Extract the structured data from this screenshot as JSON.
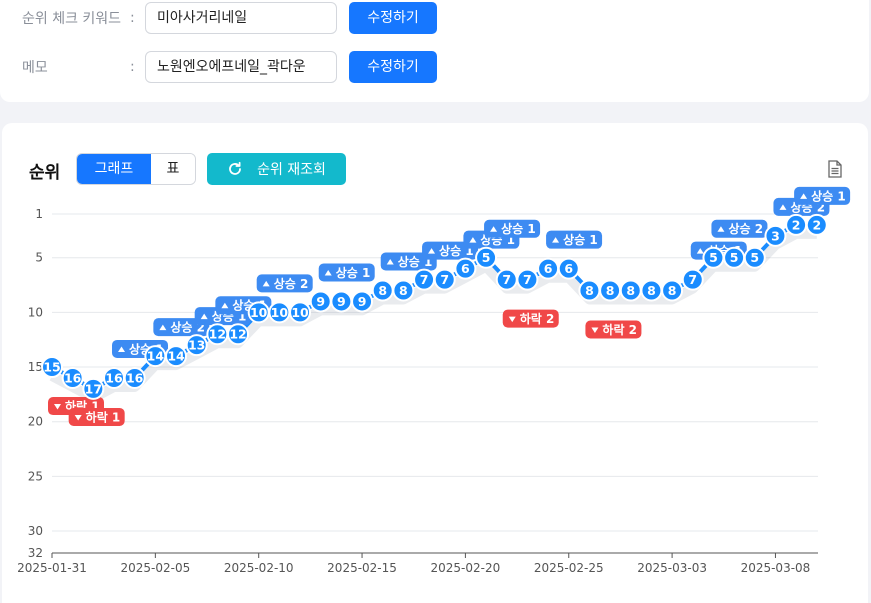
{
  "form": {
    "keyword_label": "순위 체크 키워드",
    "keyword_colon": ":",
    "keyword_value": "미아사거리네일",
    "keyword_button": "수정하기",
    "memo_label": "메모",
    "memo_colon": ":",
    "memo_value": "노원엔오에프네일_곽다운",
    "memo_button": "수정하기"
  },
  "rank_panel": {
    "title": "순위",
    "view_graph": "그래프",
    "view_table": "표",
    "refresh_button": "순위 재조회",
    "selected_view": "그래프"
  },
  "chart_data": {
    "type": "line",
    "title": "",
    "xlabel": "",
    "ylabel": "",
    "y_inverted": true,
    "ylim": [
      1,
      32
    ],
    "y_ticks": [
      1,
      5,
      10,
      15,
      20,
      25,
      30,
      32
    ],
    "x_tick_labels": [
      "2025-01-31",
      "2025-02-05",
      "2025-02-10",
      "2025-02-15",
      "2025-02-20",
      "2025-02-25",
      "2025-03-03",
      "2025-03-08"
    ],
    "x": [
      "2025-01-31",
      "2025-02-01",
      "2025-02-02",
      "2025-02-03",
      "2025-02-04",
      "2025-02-05",
      "2025-02-06",
      "2025-02-07",
      "2025-02-08",
      "2025-02-09",
      "2025-02-10",
      "2025-02-11",
      "2025-02-12",
      "2025-02-13",
      "2025-02-14",
      "2025-02-15",
      "2025-02-16",
      "2025-02-17",
      "2025-02-18",
      "2025-02-19",
      "2025-02-20",
      "2025-02-21",
      "2025-02-22",
      "2025-02-23",
      "2025-02-24",
      "2025-02-25",
      "2025-02-26",
      "2025-02-27",
      "2025-02-28",
      "2025-03-01",
      "2025-03-02",
      "2025-03-03",
      "2025-03-04",
      "2025-03-05",
      "2025-03-06",
      "2025-03-07",
      "2025-03-08",
      "2025-03-09"
    ],
    "values": [
      15,
      16,
      17,
      16,
      16,
      14,
      14,
      13,
      12,
      12,
      10,
      10,
      10,
      9,
      9,
      9,
      8,
      8,
      7,
      7,
      6,
      5,
      7,
      7,
      6,
      6,
      8,
      8,
      8,
      8,
      8,
      7,
      5,
      5,
      5,
      3,
      2,
      2
    ],
    "series_color": "#1a8cff",
    "up_color": "#3d8bf2",
    "down_color": "#f04848",
    "annotations": [
      {
        "index": 0,
        "dir": "down",
        "text": "하락 1"
      },
      {
        "index": 1,
        "dir": "down",
        "text": "하락 1"
      },
      {
        "index": 3,
        "dir": "up",
        "text": "상승 1"
      },
      {
        "index": 5,
        "dir": "up",
        "text": "상승 2"
      },
      {
        "index": 7,
        "dir": "up",
        "text": "상승 1"
      },
      {
        "index": 8,
        "dir": "up",
        "text": "상승 1"
      },
      {
        "index": 10,
        "dir": "up",
        "text": "상승 2"
      },
      {
        "index": 13,
        "dir": "up",
        "text": "상승 1"
      },
      {
        "index": 16,
        "dir": "up",
        "text": "상승 1"
      },
      {
        "index": 18,
        "dir": "up",
        "text": "상승 1"
      },
      {
        "index": 20,
        "dir": "up",
        "text": "상승 1"
      },
      {
        "index": 21,
        "dir": "up",
        "text": "상승 1"
      },
      {
        "index": 22,
        "dir": "down",
        "text": "하락 2"
      },
      {
        "index": 24,
        "dir": "up",
        "text": "상승 1"
      },
      {
        "index": 26,
        "dir": "down",
        "text": "하락 2"
      },
      {
        "index": 31,
        "dir": "up",
        "text": "상승 1"
      },
      {
        "index": 32,
        "dir": "up",
        "text": "상승 2"
      },
      {
        "index": 35,
        "dir": "up",
        "text": "상승 2"
      },
      {
        "index": 36,
        "dir": "up",
        "text": "상승 1"
      }
    ]
  }
}
